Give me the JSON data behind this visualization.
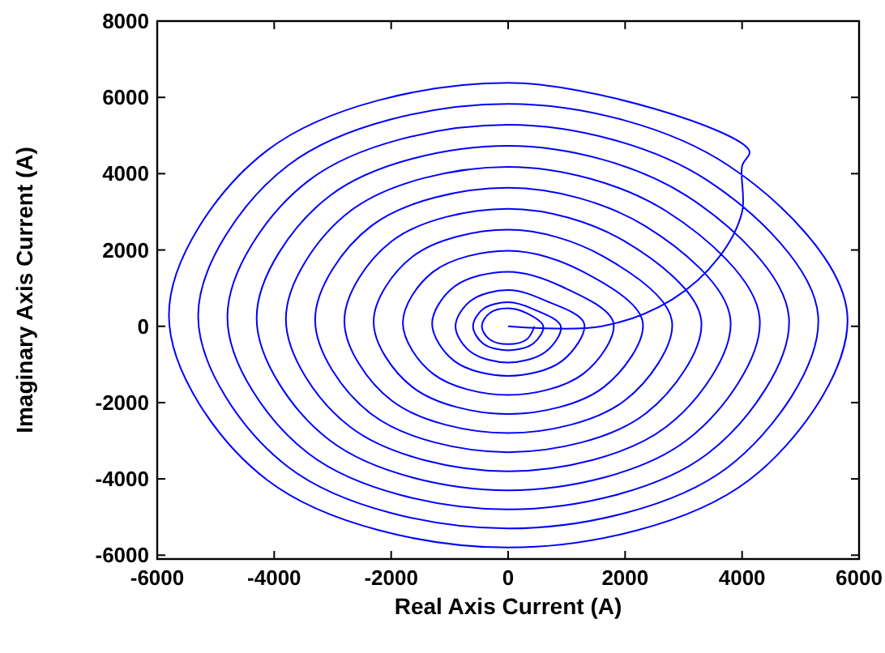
{
  "chart_data": {
    "type": "line",
    "xlabel": "Real Axis Current (A)",
    "ylabel": "Imaginary Axis Current (A)",
    "xlim": [
      -6000,
      6000
    ],
    "ylim": [
      -6100,
      8000
    ],
    "xticks": [
      -6000,
      -4000,
      -2000,
      0,
      2000,
      4000,
      6000
    ],
    "yticks": [
      -6000,
      -4000,
      -2000,
      0,
      2000,
      4000,
      6000,
      8000
    ],
    "marker": "none",
    "line_style": "solid",
    "series": [
      {
        "color": "#0000ff",
        "x": [
          0,
          1600,
          2800,
          3600,
          4000,
          4000,
          4120,
          0,
          -4120,
          -5800,
          -4120,
          0,
          4120,
          5800,
          3760,
          0,
          -3760,
          -5300,
          -3760,
          0,
          3760,
          5300,
          3410,
          0,
          -3410,
          -4800,
          -3410,
          0,
          3410,
          4800,
          3050,
          0,
          -3050,
          -4300,
          -3050,
          0,
          3050,
          4300,
          2700,
          0,
          -2700,
          -3800,
          -2700,
          0,
          2700,
          3800,
          2340,
          0,
          -2340,
          -3300,
          -2340,
          0,
          2340,
          3300,
          1990,
          0,
          -1990,
          -2800,
          -1990,
          0,
          1990,
          2800,
          1630,
          0,
          -1630,
          -2300,
          -1630,
          0,
          1630,
          2300,
          1280,
          0,
          -1280,
          -1800,
          -1280,
          0,
          1280,
          1800,
          920,
          0,
          -920,
          -1300,
          -920,
          0,
          920,
          1300,
          640,
          0,
          -640,
          -900,
          -640,
          0,
          640,
          900,
          430,
          0,
          -430,
          -600,
          -430,
          0,
          430,
          600,
          320,
          0,
          -320,
          -450,
          -320,
          0,
          320,
          450
        ],
        "values": [
          0,
          0,
          700,
          1800,
          3000,
          4200,
          4610,
          6380,
          4610,
          290,
          -4030,
          -5800,
          -4030,
          290,
          4220,
          5830,
          4220,
          270,
          -3690,
          -5300,
          -3690,
          270,
          3820,
          5280,
          3820,
          240,
          -3340,
          -4800,
          -3340,
          240,
          3420,
          4730,
          3420,
          220,
          -2990,
          -4300,
          -2990,
          220,
          3020,
          4180,
          3020,
          190,
          -2640,
          -3800,
          -2640,
          190,
          2630,
          3630,
          2630,
          170,
          -2300,
          -3300,
          -2300,
          170,
          2230,
          3080,
          2230,
          140,
          -1950,
          -2800,
          -1950,
          140,
          1830,
          2530,
          1830,
          120,
          -1600,
          -2300,
          -1600,
          120,
          1430,
          1980,
          1430,
          90,
          -1250,
          -1800,
          -1250,
          90,
          1040,
          1430,
          1040,
          70,
          -910,
          -1300,
          -910,
          70,
          670,
          950,
          670,
          0,
          -670,
          -950,
          -670,
          0,
          450,
          630,
          450,
          0,
          -450,
          -630,
          -450,
          0,
          340,
          470,
          340,
          0,
          -340,
          -470,
          -340,
          0
        ]
      }
    ]
  }
}
